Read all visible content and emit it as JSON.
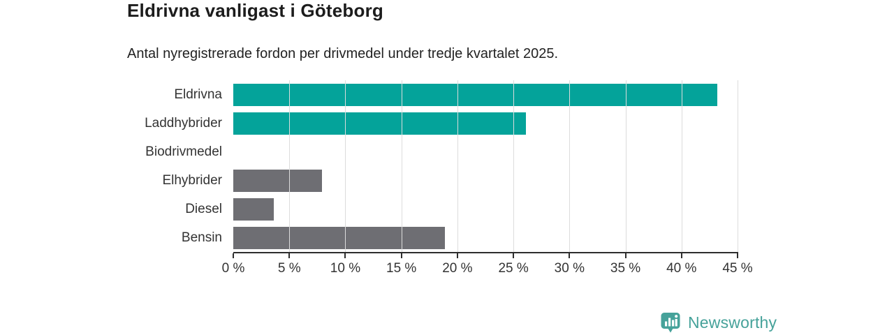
{
  "header": {
    "title": "Eldrivna vanligast i Göteborg",
    "subtitle": "Antal nyregistrerade fordon per drivmedel under tredje kvartalet 2025."
  },
  "chart_data": {
    "type": "bar",
    "orientation": "horizontal",
    "title": "Eldrivna vanligast i Göteborg",
    "subtitle": "Antal nyregistrerade fordon per drivmedel under tredje kvartalet 2025.",
    "categories": [
      "Eldrivna",
      "Laddhybrider",
      "Biodrivmedel",
      "Elhybrider",
      "Diesel",
      "Bensin"
    ],
    "values": [
      43.2,
      26.1,
      0,
      7.9,
      3.6,
      18.9
    ],
    "unit": "%",
    "bar_colors": [
      "#04a39a",
      "#04a39a",
      "#6e6e73",
      "#6e6e73",
      "#6e6e73",
      "#6e6e73"
    ],
    "xlim": [
      0,
      45
    ],
    "x_ticks": [
      0,
      5,
      10,
      15,
      20,
      25,
      30,
      35,
      40,
      45
    ],
    "x_tick_labels": [
      "0 %",
      "5 %",
      "10 %",
      "15 %",
      "20 %",
      "25 %",
      "30 %",
      "35 %",
      "40 %",
      "45 %"
    ],
    "grid": "vertical-gridlines-on",
    "legend": "none",
    "xlabel": "",
    "ylabel": ""
  },
  "colors": {
    "highlight_bar": "#04a39a",
    "default_bar": "#6e6e73",
    "gridline": "#dcdcdc",
    "axis": "#2d2d2d",
    "text": "#333333",
    "title_text": "#1c1c1c",
    "logo": "#46a29a"
  },
  "branding": {
    "logo_text": "Newsworthy",
    "logo_icon": "newsworthy-pin-barchart-icon"
  }
}
